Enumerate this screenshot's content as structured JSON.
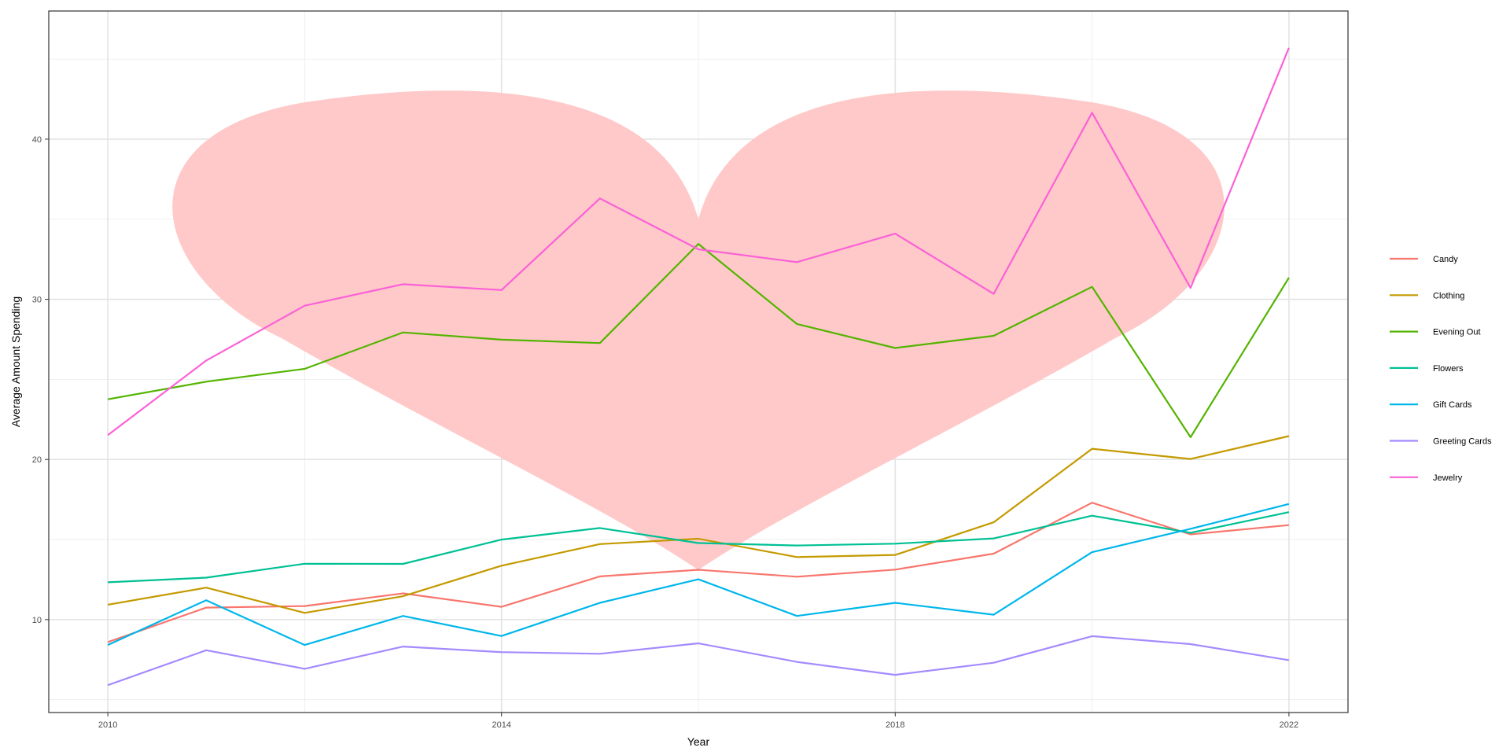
{
  "chart_data": {
    "type": "line",
    "title": "",
    "xlabel": "Year",
    "ylabel": "Average Amount Spending",
    "x": [
      2010,
      2011,
      2012,
      2013,
      2014,
      2015,
      2016,
      2017,
      2018,
      2019,
      2020,
      2021,
      2022
    ],
    "xlim": [
      2009.4,
      2022.6
    ],
    "ylim": [
      4.2,
      48.0
    ],
    "x_ticks": [
      2010,
      2014,
      2018,
      2022
    ],
    "x_minor_ticks": [
      2012,
      2016,
      2020
    ],
    "y_ticks": [
      10,
      20,
      30,
      40
    ],
    "y_minor_ticks": [
      5,
      15,
      25,
      35,
      45
    ],
    "grid": true,
    "legend_position": "right",
    "series": [
      {
        "name": "Candy",
        "color": "#F8766D",
        "values": [
          8.6,
          10.75,
          10.85,
          11.64,
          10.8,
          12.7,
          13.11,
          12.68,
          13.12,
          14.12,
          17.3,
          15.32,
          15.9
        ]
      },
      {
        "name": "Clothing",
        "color": "#C49A00",
        "values": [
          10.93,
          12.0,
          10.42,
          11.46,
          13.37,
          14.72,
          15.05,
          13.91,
          14.04,
          16.08,
          20.67,
          20.03,
          21.46
        ]
      },
      {
        "name": "Evening Out",
        "color": "#53B400",
        "values": [
          23.76,
          24.86,
          25.66,
          27.93,
          27.48,
          27.27,
          33.46,
          28.46,
          26.96,
          27.72,
          30.78,
          21.39,
          31.35
        ]
      },
      {
        "name": "Flowers",
        "color": "#00C094",
        "values": [
          12.33,
          12.62,
          13.49,
          13.48,
          15.0,
          15.72,
          14.78,
          14.63,
          14.74,
          15.07,
          16.49,
          15.42,
          16.71
        ]
      },
      {
        "name": "Gift Cards",
        "color": "#00B6EB",
        "values": [
          8.42,
          11.21,
          8.42,
          10.23,
          8.98,
          11.05,
          12.52,
          10.23,
          11.05,
          10.31,
          14.21,
          15.67,
          17.22
        ]
      },
      {
        "name": "Greeting Cards",
        "color": "#A58AFF",
        "values": [
          5.91,
          8.09,
          6.93,
          8.32,
          7.97,
          7.87,
          8.52,
          7.36,
          6.55,
          7.31,
          8.97,
          8.47,
          7.47
        ]
      },
      {
        "name": "Jewelry",
        "color": "#FB61D7",
        "values": [
          21.52,
          26.18,
          29.6,
          30.94,
          30.58,
          36.3,
          33.12,
          32.32,
          34.1,
          30.34,
          41.65,
          30.71,
          45.7
        ]
      }
    ],
    "background_shape": {
      "shape": "heart",
      "color": "#FFC9C9"
    }
  }
}
